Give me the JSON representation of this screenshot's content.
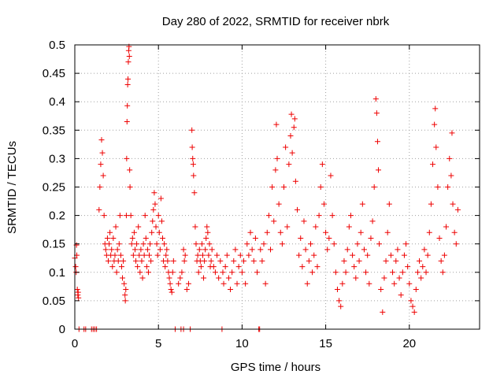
{
  "chart_data": {
    "type": "scatter",
    "title": "Day 280 of 2022, SRMTID for receiver nbrk",
    "xlabel": "GPS time / hours",
    "ylabel": "SRMTID / TECUs",
    "xlim": [
      0,
      24.2
    ],
    "ylim": [
      0,
      0.5
    ],
    "grid": true,
    "x_ticks": [
      0,
      5,
      10,
      15,
      20
    ],
    "x_tick_labels": [
      "0",
      "5",
      "10",
      "15",
      "20"
    ],
    "y_ticks": [
      0,
      0.05,
      0.1,
      0.15,
      0.2,
      0.25,
      0.3,
      0.35,
      0.4,
      0.45,
      0.5
    ],
    "y_tick_labels": [
      "0",
      "0.05",
      "0.1",
      "0.15",
      "0.2",
      "0.25",
      "0.3",
      "0.35",
      "0.4",
      "0.45",
      "0.5"
    ],
    "marker": "+",
    "color": "#ee0000",
    "series": [
      {
        "name": "SRMTID",
        "points": [
          [
            0.0,
            0.125
          ],
          [
            0.05,
            0.11
          ],
          [
            0.08,
            0.1
          ],
          [
            0.1,
            0.148
          ],
          [
            0.12,
            0.13
          ],
          [
            0.15,
            0.07
          ],
          [
            0.18,
            0.06
          ],
          [
            0.2,
            0.065
          ],
          [
            0.22,
            0.055
          ],
          [
            0.25,
            0.0
          ],
          [
            0.55,
            0.0
          ],
          [
            0.65,
            0.0
          ],
          [
            1.0,
            0.0
          ],
          [
            1.1,
            0.0
          ],
          [
            1.2,
            0.0
          ],
          [
            1.3,
            0.0
          ],
          [
            1.45,
            0.21
          ],
          [
            1.5,
            0.25
          ],
          [
            1.55,
            0.29
          ],
          [
            1.6,
            0.333
          ],
          [
            1.65,
            0.31
          ],
          [
            1.7,
            0.27
          ],
          [
            1.75,
            0.2
          ],
          [
            1.8,
            0.15
          ],
          [
            1.85,
            0.14
          ],
          [
            1.9,
            0.13
          ],
          [
            1.95,
            0.16
          ],
          [
            2.0,
            0.12
          ],
          [
            2.05,
            0.15
          ],
          [
            2.1,
            0.17
          ],
          [
            2.15,
            0.13
          ],
          [
            2.2,
            0.14
          ],
          [
            2.25,
            0.11
          ],
          [
            2.3,
            0.16
          ],
          [
            2.35,
            0.12
          ],
          [
            2.4,
            0.13
          ],
          [
            2.45,
            0.18
          ],
          [
            2.5,
            0.1
          ],
          [
            2.55,
            0.14
          ],
          [
            2.6,
            0.12
          ],
          [
            2.65,
            0.15
          ],
          [
            2.7,
            0.2
          ],
          [
            2.75,
            0.13
          ],
          [
            2.8,
            0.11
          ],
          [
            2.85,
            0.09
          ],
          [
            2.9,
            0.12
          ],
          [
            2.95,
            0.08
          ],
          [
            3.0,
            0.06
          ],
          [
            3.02,
            0.05
          ],
          [
            3.05,
            0.07
          ],
          [
            3.08,
            0.2
          ],
          [
            3.1,
            0.3
          ],
          [
            3.12,
            0.365
          ],
          [
            3.14,
            0.393
          ],
          [
            3.16,
            0.43
          ],
          [
            3.18,
            0.44
          ],
          [
            3.2,
            0.47
          ],
          [
            3.22,
            0.49
          ],
          [
            3.24,
            0.497
          ],
          [
            3.26,
            0.48
          ],
          [
            3.28,
            0.28
          ],
          [
            3.3,
            0.25
          ],
          [
            3.35,
            0.2
          ],
          [
            3.4,
            0.15
          ],
          [
            3.45,
            0.16
          ],
          [
            3.5,
            0.13
          ],
          [
            3.55,
            0.17
          ],
          [
            3.6,
            0.14
          ],
          [
            3.65,
            0.12
          ],
          [
            3.7,
            0.15
          ],
          [
            3.75,
            0.11
          ],
          [
            3.8,
            0.18
          ],
          [
            3.85,
            0.13
          ],
          [
            3.9,
            0.1
          ],
          [
            3.95,
            0.14
          ],
          [
            4.0,
            0.12
          ],
          [
            4.05,
            0.09
          ],
          [
            4.1,
            0.15
          ],
          [
            4.15,
            0.13
          ],
          [
            4.2,
            0.2
          ],
          [
            4.25,
            0.16
          ],
          [
            4.3,
            0.11
          ],
          [
            4.35,
            0.14
          ],
          [
            4.4,
            0.1
          ],
          [
            4.45,
            0.13
          ],
          [
            4.5,
            0.15
          ],
          [
            4.55,
            0.12
          ],
          [
            4.6,
            0.17
          ],
          [
            4.65,
            0.19
          ],
          [
            4.7,
            0.21
          ],
          [
            4.75,
            0.24
          ],
          [
            4.8,
            0.22
          ],
          [
            4.85,
            0.18
          ],
          [
            4.9,
            0.15
          ],
          [
            4.95,
            0.13
          ],
          [
            5.0,
            0.2
          ],
          [
            5.05,
            0.17
          ],
          [
            5.1,
            0.14
          ],
          [
            5.15,
            0.23
          ],
          [
            5.2,
            0.19
          ],
          [
            5.25,
            0.16
          ],
          [
            5.3,
            0.12
          ],
          [
            5.35,
            0.15
          ],
          [
            5.4,
            0.11
          ],
          [
            5.45,
            0.13
          ],
          [
            5.5,
            0.14
          ],
          [
            5.55,
            0.12
          ],
          [
            5.6,
            0.1
          ],
          [
            5.65,
            0.09
          ],
          [
            5.7,
            0.08
          ],
          [
            5.75,
            0.07
          ],
          [
            5.8,
            0.065
          ],
          [
            5.85,
            0.1
          ],
          [
            5.9,
            0.12
          ],
          [
            6.0,
            0.0
          ],
          [
            6.35,
            0.0
          ],
          [
            6.5,
            0.0
          ],
          [
            6.9,
            0.0
          ],
          [
            6.2,
            0.08
          ],
          [
            6.3,
            0.09
          ],
          [
            6.4,
            0.1
          ],
          [
            6.5,
            0.14
          ],
          [
            6.55,
            0.12
          ],
          [
            6.6,
            0.13
          ],
          [
            6.7,
            0.07
          ],
          [
            6.8,
            0.08
          ],
          [
            7.0,
            0.35
          ],
          [
            7.02,
            0.32
          ],
          [
            7.05,
            0.3
          ],
          [
            7.08,
            0.29
          ],
          [
            7.1,
            0.27
          ],
          [
            7.15,
            0.24
          ],
          [
            7.2,
            0.18
          ],
          [
            7.25,
            0.15
          ],
          [
            7.3,
            0.12
          ],
          [
            7.35,
            0.13
          ],
          [
            7.4,
            0.1
          ],
          [
            7.45,
            0.14
          ],
          [
            7.5,
            0.12
          ],
          [
            7.55,
            0.11
          ],
          [
            7.6,
            0.15
          ],
          [
            7.65,
            0.13
          ],
          [
            7.7,
            0.09
          ],
          [
            7.75,
            0.12
          ],
          [
            7.8,
            0.14
          ],
          [
            7.85,
            0.16
          ],
          [
            7.9,
            0.18
          ],
          [
            7.95,
            0.17
          ],
          [
            8.0,
            0.13
          ],
          [
            8.05,
            0.15
          ],
          [
            8.1,
            0.11
          ],
          [
            8.15,
            0.12
          ],
          [
            8.2,
            0.14
          ],
          [
            8.3,
            0.11
          ],
          [
            8.4,
            0.1
          ],
          [
            8.5,
            0.13
          ],
          [
            8.6,
            0.09
          ],
          [
            8.7,
            0.12
          ],
          [
            8.8,
            0.0
          ],
          [
            8.85,
            0.1
          ],
          [
            8.9,
            0.08
          ],
          [
            9.0,
            0.11
          ],
          [
            9.1,
            0.13
          ],
          [
            9.2,
            0.09
          ],
          [
            9.3,
            0.07
          ],
          [
            9.4,
            0.1
          ],
          [
            9.5,
            0.12
          ],
          [
            9.6,
            0.14
          ],
          [
            9.7,
            0.08
          ],
          [
            9.8,
            0.11
          ],
          [
            9.9,
            0.13
          ],
          [
            10.0,
            0.1
          ],
          [
            10.1,
            0.12
          ],
          [
            10.2,
            0.08
          ],
          [
            10.3,
            0.15
          ],
          [
            10.4,
            0.13
          ],
          [
            10.5,
            0.17
          ],
          [
            10.6,
            0.14
          ],
          [
            10.7,
            0.12
          ],
          [
            10.8,
            0.16
          ],
          [
            10.9,
            0.1
          ],
          [
            11.0,
            0.0
          ],
          [
            11.05,
            0.0
          ],
          [
            11.1,
            0.14
          ],
          [
            11.2,
            0.12
          ],
          [
            11.3,
            0.15
          ],
          [
            11.4,
            0.08
          ],
          [
            11.5,
            0.17
          ],
          [
            11.6,
            0.2
          ],
          [
            11.7,
            0.14
          ],
          [
            11.8,
            0.25
          ],
          [
            11.9,
            0.19
          ],
          [
            12.0,
            0.28
          ],
          [
            12.05,
            0.36
          ],
          [
            12.1,
            0.3
          ],
          [
            12.2,
            0.22
          ],
          [
            12.3,
            0.17
          ],
          [
            12.4,
            0.15
          ],
          [
            12.5,
            0.25
          ],
          [
            12.6,
            0.32
          ],
          [
            12.7,
            0.18
          ],
          [
            12.8,
            0.29
          ],
          [
            12.9,
            0.34
          ],
          [
            12.95,
            0.378
          ],
          [
            13.0,
            0.31
          ],
          [
            13.1,
            0.355
          ],
          [
            13.15,
            0.37
          ],
          [
            13.2,
            0.26
          ],
          [
            13.3,
            0.21
          ],
          [
            13.4,
            0.13
          ],
          [
            13.5,
            0.16
          ],
          [
            13.6,
            0.11
          ],
          [
            13.7,
            0.19
          ],
          [
            13.8,
            0.14
          ],
          [
            13.9,
            0.08
          ],
          [
            14.0,
            0.12
          ],
          [
            14.1,
            0.15
          ],
          [
            14.2,
            0.1
          ],
          [
            14.3,
            0.13
          ],
          [
            14.4,
            0.18
          ],
          [
            14.5,
            0.11
          ],
          [
            14.6,
            0.2
          ],
          [
            14.7,
            0.25
          ],
          [
            14.8,
            0.29
          ],
          [
            14.9,
            0.22
          ],
          [
            15.0,
            0.17
          ],
          [
            15.1,
            0.14
          ],
          [
            15.2,
            0.16
          ],
          [
            15.3,
            0.27
          ],
          [
            15.4,
            0.2
          ],
          [
            15.5,
            0.15
          ],
          [
            15.6,
            0.1
          ],
          [
            15.7,
            0.07
          ],
          [
            15.8,
            0.05
          ],
          [
            15.9,
            0.04
          ],
          [
            16.0,
            0.08
          ],
          [
            16.1,
            0.12
          ],
          [
            16.2,
            0.1
          ],
          [
            16.3,
            0.14
          ],
          [
            16.4,
            0.18
          ],
          [
            16.5,
            0.2
          ],
          [
            16.6,
            0.13
          ],
          [
            16.7,
            0.11
          ],
          [
            16.8,
            0.09
          ],
          [
            16.9,
            0.15
          ],
          [
            17.0,
            0.12
          ],
          [
            17.1,
            0.17
          ],
          [
            17.2,
            0.22
          ],
          [
            17.3,
            0.14
          ],
          [
            17.4,
            0.1
          ],
          [
            17.5,
            0.13
          ],
          [
            17.6,
            0.08
          ],
          [
            17.7,
            0.16
          ],
          [
            17.8,
            0.19
          ],
          [
            17.9,
            0.25
          ],
          [
            18.0,
            0.405
          ],
          [
            18.05,
            0.38
          ],
          [
            18.1,
            0.33
          ],
          [
            18.15,
            0.28
          ],
          [
            18.2,
            0.15
          ],
          [
            18.3,
            0.07
          ],
          [
            18.4,
            0.03
          ],
          [
            18.5,
            0.09
          ],
          [
            18.6,
            0.12
          ],
          [
            18.7,
            0.17
          ],
          [
            18.8,
            0.22
          ],
          [
            18.9,
            0.13
          ],
          [
            19.0,
            0.1
          ],
          [
            19.1,
            0.08
          ],
          [
            19.2,
            0.12
          ],
          [
            19.3,
            0.14
          ],
          [
            19.4,
            0.09
          ],
          [
            19.5,
            0.06
          ],
          [
            19.6,
            0.1
          ],
          [
            19.7,
            0.13
          ],
          [
            19.8,
            0.15
          ],
          [
            19.9,
            0.11
          ],
          [
            20.0,
            0.08
          ],
          [
            20.1,
            0.05
          ],
          [
            20.2,
            0.04
          ],
          [
            20.3,
            0.03
          ],
          [
            20.4,
            0.07
          ],
          [
            20.5,
            0.1
          ],
          [
            20.6,
            0.12
          ],
          [
            20.7,
            0.09
          ],
          [
            20.8,
            0.11
          ],
          [
            20.9,
            0.14
          ],
          [
            21.0,
            0.1
          ],
          [
            21.1,
            0.13
          ],
          [
            21.2,
            0.17
          ],
          [
            21.3,
            0.22
          ],
          [
            21.4,
            0.29
          ],
          [
            21.5,
            0.36
          ],
          [
            21.55,
            0.388
          ],
          [
            21.6,
            0.32
          ],
          [
            21.7,
            0.25
          ],
          [
            21.8,
            0.16
          ],
          [
            21.9,
            0.12
          ],
          [
            22.0,
            0.1
          ],
          [
            22.1,
            0.13
          ],
          [
            22.2,
            0.18
          ],
          [
            22.3,
            0.25
          ],
          [
            22.4,
            0.3
          ],
          [
            22.5,
            0.27
          ],
          [
            22.55,
            0.345
          ],
          [
            22.6,
            0.22
          ],
          [
            22.7,
            0.17
          ],
          [
            22.8,
            0.15
          ],
          [
            22.9,
            0.21
          ]
        ]
      }
    ]
  }
}
